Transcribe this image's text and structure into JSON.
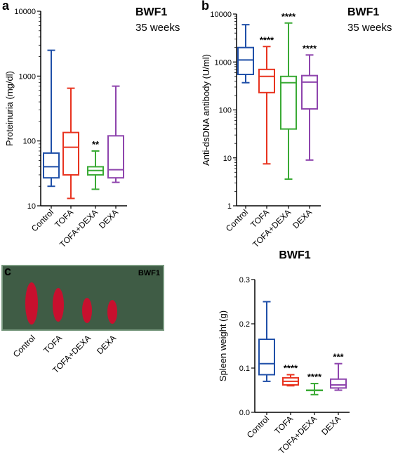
{
  "chart_data": [
    {
      "type": "box",
      "panel": "a",
      "title": "BWF1",
      "subtitle": "35 weeks",
      "y_label": "Proteinuria (mg/dl)",
      "log_y": true,
      "ylim": [
        10,
        10000
      ],
      "yticks": [
        10,
        100,
        1000,
        10000
      ],
      "categories": [
        "Control",
        "TOFA",
        "TOFA+DEXA",
        "DEXA"
      ],
      "colors": [
        "#1f4fa8",
        "#e8331f",
        "#3aaa35",
        "#8e44ad"
      ],
      "boxes": [
        {
          "min": 20,
          "q1": 27,
          "median": 40,
          "q3": 65,
          "max": 2500
        },
        {
          "min": 13,
          "q1": 30,
          "median": 80,
          "q3": 135,
          "max": 650
        },
        {
          "min": 18,
          "q1": 30,
          "median": 35,
          "q3": 40,
          "max": 70
        },
        {
          "min": 23,
          "q1": 27,
          "median": 36,
          "q3": 120,
          "max": 700
        }
      ],
      "annotations": [
        null,
        null,
        "**",
        null
      ]
    },
    {
      "type": "box",
      "panel": "b",
      "title": "BWF1",
      "subtitle": "35 weeks",
      "y_label": "Anti-dsDNA antibody (U/ml)",
      "log_y": true,
      "ylim": [
        1,
        10000
      ],
      "yticks": [
        1,
        10,
        100,
        1000,
        10000
      ],
      "categories": [
        "Control",
        "TOFA",
        "TOFA+DEXA",
        "DEXA"
      ],
      "colors": [
        "#1f4fa8",
        "#e8331f",
        "#3aaa35",
        "#8e44ad"
      ],
      "boxes": [
        {
          "min": 370,
          "q1": 550,
          "median": 1100,
          "q3": 2000,
          "max": 6000
        },
        {
          "min": 7.5,
          "q1": 230,
          "median": 500,
          "q3": 700,
          "max": 2100
        },
        {
          "min": 3.6,
          "q1": 40,
          "median": 370,
          "q3": 500,
          "max": 6500
        },
        {
          "min": 9,
          "q1": 105,
          "median": 380,
          "q3": 520,
          "max": 1400
        }
      ],
      "annotations": [
        null,
        "****",
        "****",
        "****"
      ]
    },
    {
      "type": "box",
      "title": "BWF1",
      "y_label": "Spleen weight (g)",
      "log_y": false,
      "ylim": [
        0,
        0.3
      ],
      "yticks": [
        {
          "value": 0,
          "label": "0.0"
        },
        0.1,
        0.2,
        0.3
      ],
      "categories": [
        "Control",
        "TOFA",
        "TOFA+DEXA",
        "DEXA"
      ],
      "colors": [
        "#1f4fa8",
        "#e8331f",
        "#3aaa35",
        "#8e44ad"
      ],
      "boxes": [
        {
          "min": 0.07,
          "q1": 0.085,
          "median": 0.11,
          "q3": 0.165,
          "max": 0.25
        },
        {
          "min": 0.06,
          "q1": 0.062,
          "median": 0.07,
          "q3": 0.078,
          "max": 0.085
        },
        {
          "min": 0.04,
          "q1": 0.05,
          "median": 0.05,
          "q3": 0.05,
          "max": 0.065
        },
        {
          "min": 0.05,
          "q1": 0.055,
          "median": 0.062,
          "q3": 0.075,
          "max": 0.11
        }
      ],
      "annotations": [
        null,
        "****",
        "****",
        "***"
      ]
    }
  ],
  "photo": {
    "panel": "c",
    "title": "BWF1",
    "labels": [
      "Control",
      "TOFA",
      "TOFA+DEXA",
      "DEXA"
    ]
  }
}
